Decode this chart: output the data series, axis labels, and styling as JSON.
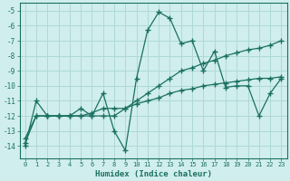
{
  "xlabel": "Humidex (Indice chaleur)",
  "ylabel": "",
  "series": [
    {
      "x": [
        0,
        1,
        2,
        3,
        4,
        5,
        6,
        7,
        8,
        9,
        10,
        11,
        12,
        13,
        14,
        15,
        16,
        17,
        18,
        19,
        20,
        21,
        22,
        23
      ],
      "y": [
        -14,
        -11,
        -12,
        -12,
        -12,
        -11.5,
        -12,
        -10.5,
        -13,
        -14.3,
        -9.5,
        -6.3,
        -5.1,
        -5.5,
        -7.2,
        -7.0,
        -9.0,
        -7.7,
        -10.1,
        -10.0,
        -10.0,
        -12.0,
        -10.5,
        -9.5
      ]
    },
    {
      "x": [
        0,
        1,
        2,
        3,
        4,
        5,
        6,
        7,
        8,
        9,
        10,
        11,
        12,
        13,
        14,
        15,
        16,
        17,
        18,
        19,
        20,
        21,
        22,
        23
      ],
      "y": [
        -13.5,
        -12,
        -12,
        -12,
        -12,
        -12,
        -12,
        -12,
        -12,
        -11.5,
        -11,
        -10.5,
        -10,
        -9.5,
        -9.0,
        -8.8,
        -8.5,
        -8.3,
        -8.0,
        -7.8,
        -7.6,
        -7.5,
        -7.3,
        -7.0
      ]
    },
    {
      "x": [
        0,
        1,
        2,
        3,
        4,
        5,
        6,
        7,
        8,
        9,
        10,
        11,
        12,
        13,
        14,
        15,
        16,
        17,
        18,
        19,
        20,
        21,
        22,
        23
      ],
      "y": [
        -13.8,
        -12,
        -12,
        -12,
        -12,
        -12,
        -11.8,
        -11.5,
        -11.5,
        -11.5,
        -11.2,
        -11.0,
        -10.8,
        -10.5,
        -10.3,
        -10.2,
        -10.0,
        -9.9,
        -9.8,
        -9.7,
        -9.6,
        -9.5,
        -9.5,
        -9.4
      ]
    }
  ],
  "line_color": "#1a7060",
  "marker_color": "#1a7060",
  "bg_color": "#d0eeee",
  "grid_color": "#b0d8d8",
  "tick_color": "#1a7060",
  "xlim": [
    -0.5,
    23.5
  ],
  "ylim": [
    -14.8,
    -4.5
  ],
  "yticks": [
    -5,
    -6,
    -7,
    -8,
    -9,
    -10,
    -11,
    -12,
    -13,
    -14
  ],
  "xticks": [
    0,
    1,
    2,
    3,
    4,
    5,
    6,
    7,
    8,
    9,
    10,
    11,
    12,
    13,
    14,
    15,
    16,
    17,
    18,
    19,
    20,
    21,
    22,
    23
  ]
}
